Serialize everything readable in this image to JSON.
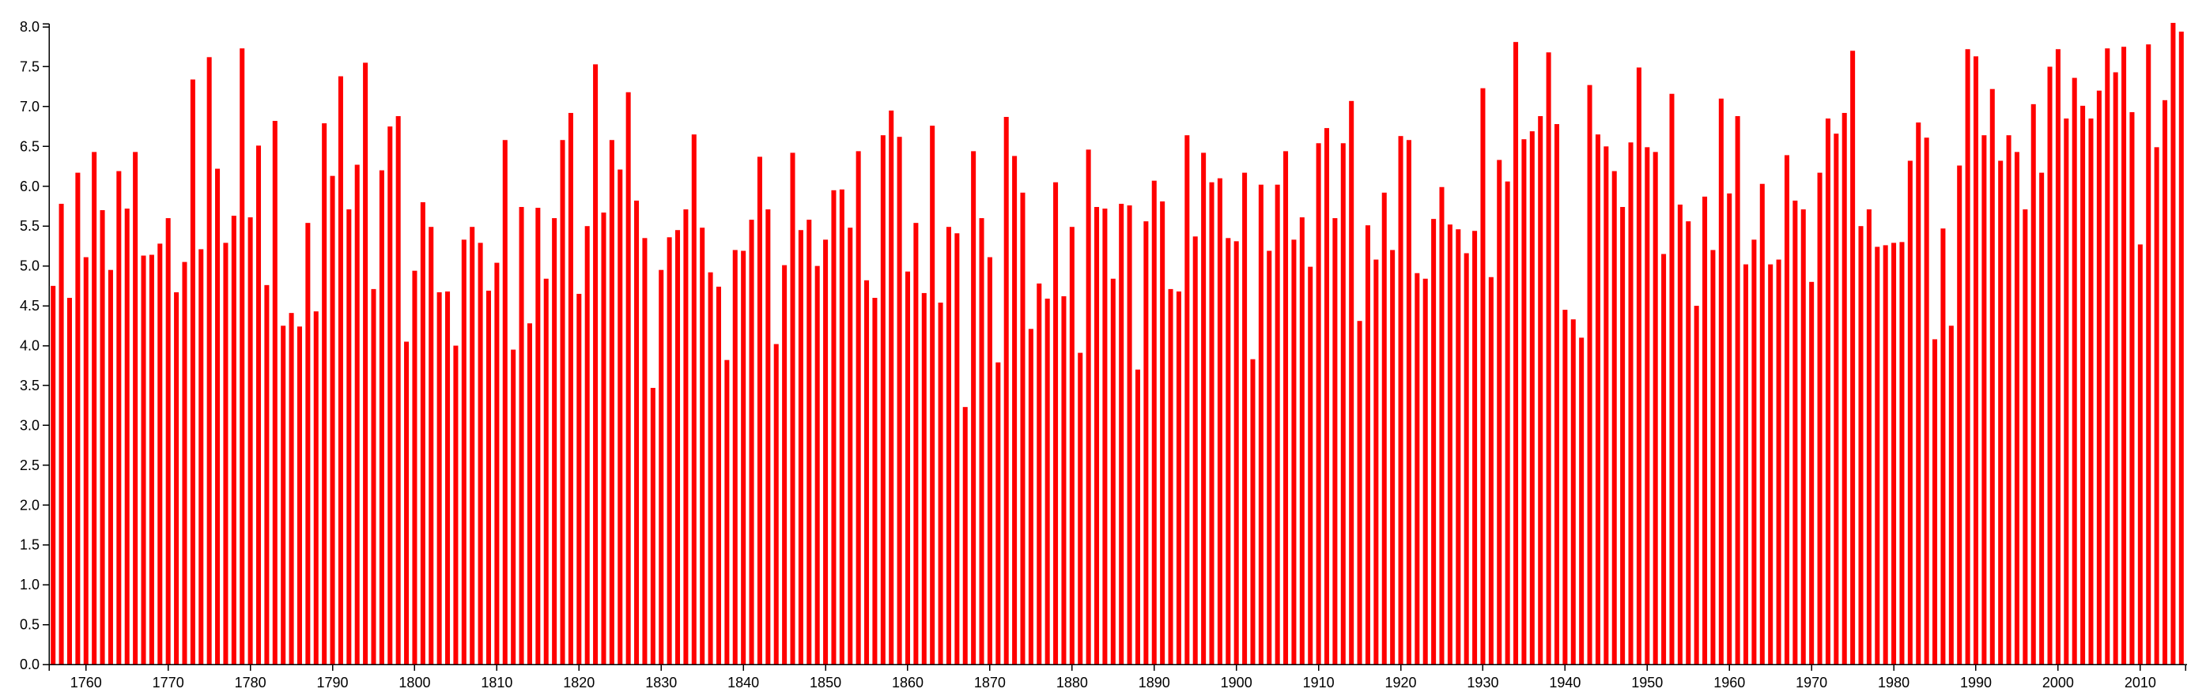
{
  "colors": {
    "bar": "#ff0000",
    "axis": "#000000",
    "background": "#ffffff"
  },
  "chart_data": {
    "type": "bar",
    "title": "",
    "xlabel": "",
    "ylabel": "",
    "legend": "none",
    "grid": false,
    "xlim": [
      1756,
      2015
    ],
    "ylim": [
      0,
      8.0
    ],
    "y_ticks": [
      "0.0",
      "0.5",
      "1.0",
      "1.5",
      "2.0",
      "2.5",
      "3.0",
      "3.5",
      "4.0",
      "4.5",
      "5.0",
      "5.5",
      "6.0",
      "6.5",
      "7.0",
      "7.5",
      "8.0"
    ],
    "x_ticks": [
      "1760",
      "1770",
      "1780",
      "1790",
      "1800",
      "1810",
      "1820",
      "1830",
      "1840",
      "1850",
      "1860",
      "1870",
      "1880",
      "1890",
      "1900",
      "1910",
      "1920",
      "1930",
      "1940",
      "1950",
      "1960",
      "1970",
      "1980",
      "1990",
      "2000",
      "2010"
    ],
    "series": [
      {
        "x_start": 1756,
        "values": [
          4.75,
          5.78,
          4.6,
          6.17,
          5.11,
          6.43,
          5.7,
          4.95,
          6.19,
          5.72,
          6.43,
          5.13,
          5.14,
          5.28,
          5.6,
          4.67,
          5.05,
          7.34,
          5.21,
          7.62,
          6.22,
          5.29,
          5.63,
          7.73,
          5.61,
          6.51,
          4.76,
          6.82,
          4.25,
          4.41,
          4.24,
          5.54,
          4.43,
          6.79,
          6.13,
          7.38,
          5.71,
          6.27,
          7.55,
          4.71,
          6.2,
          6.75,
          6.88,
          4.05,
          4.94,
          5.8,
          5.49,
          4.67,
          4.68,
          4.0,
          5.33,
          5.49,
          5.29,
          4.69,
          5.04,
          6.58,
          3.95,
          5.74,
          4.28,
          5.73,
          4.84,
          5.6,
          6.58,
          6.92,
          4.65,
          5.5,
          7.53,
          5.67,
          6.58,
          6.21,
          7.18,
          5.82,
          5.35,
          3.47,
          4.95,
          5.36,
          5.45,
          5.71,
          6.65,
          5.48,
          4.92,
          4.74,
          3.82,
          5.2,
          5.19,
          5.58,
          6.37,
          5.71,
          4.02,
          5.01,
          6.42,
          5.45,
          5.58,
          5.0,
          5.33,
          5.95,
          5.96,
          5.48,
          6.44,
          4.82,
          4.6,
          6.64,
          6.95,
          6.62,
          4.93,
          5.54,
          4.66,
          6.76,
          4.54,
          5.49,
          5.41,
          3.23,
          6.44,
          5.6,
          5.11,
          3.79,
          6.87,
          6.38,
          5.92,
          4.21,
          4.78,
          4.59,
          6.05,
          4.62,
          5.49,
          3.91,
          6.46,
          5.74,
          5.72,
          4.84,
          5.78,
          5.76,
          3.7,
          5.56,
          6.07,
          5.81,
          4.71,
          4.68,
          6.64,
          5.37,
          6.42,
          6.05,
          6.1,
          5.35,
          5.31,
          6.17,
          3.83,
          6.02,
          5.19,
          6.02,
          6.44,
          5.33,
          5.61,
          4.99,
          6.54,
          6.73,
          5.6,
          6.54,
          7.07,
          4.31,
          5.51,
          5.08,
          5.92,
          5.2,
          6.63,
          6.58,
          4.91,
          4.84,
          5.59,
          5.99,
          5.52,
          5.46,
          5.16,
          5.44,
          7.23,
          4.86,
          6.33,
          6.06,
          7.81,
          6.59,
          6.69,
          6.88,
          7.68,
          6.78,
          4.45,
          4.33,
          4.1,
          7.27,
          6.65,
          6.5,
          6.19,
          5.74,
          6.55,
          7.49,
          6.49,
          6.43,
          5.15,
          7.16,
          5.77,
          5.56,
          4.5,
          5.87,
          5.2,
          7.1,
          5.91,
          6.88,
          5.02,
          5.33,
          6.03,
          5.02,
          5.08,
          6.39,
          5.82,
          5.71,
          4.8,
          6.17,
          6.85,
          6.66,
          6.92,
          7.7,
          5.5,
          5.71,
          5.24,
          5.26,
          5.29,
          5.3,
          6.32,
          6.8,
          6.61,
          4.08,
          5.47,
          4.25,
          6.26,
          7.72,
          7.63,
          6.64,
          7.22,
          6.32,
          6.64,
          6.43,
          5.71,
          7.03,
          6.17,
          7.5,
          7.72,
          6.85,
          7.36,
          7.01,
          6.85,
          7.2,
          7.73,
          7.43,
          7.75,
          6.93,
          5.27,
          7.78,
          6.49,
          7.08,
          8.05,
          7.94
        ]
      }
    ]
  }
}
